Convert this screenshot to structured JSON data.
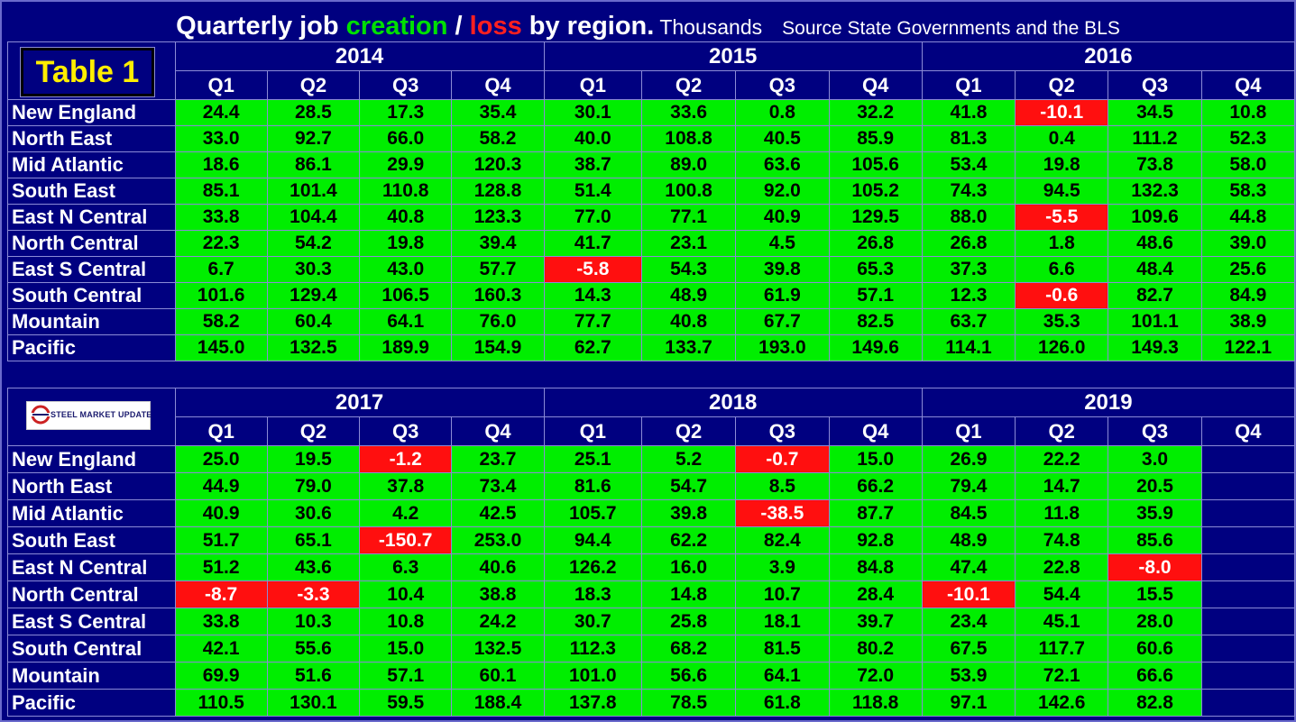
{
  "header": {
    "title_pre": "Quarterly job ",
    "creation": "creation",
    "sep": " / ",
    "loss": "loss",
    "title_post": " by region.",
    "units": "Thousands",
    "source": "Source State Governments and the BLS"
  },
  "badge": "Table 1",
  "logo_text": "STEEL MARKET UPDATE",
  "colors": {
    "background": "#000080",
    "positive": "#00ee00",
    "negative": "#ff0f0f",
    "title_creation": "#00e000",
    "title_loss": "#ff2020",
    "badge_text": "#ffee00"
  },
  "chart_data": {
    "type": "table",
    "title": "Quarterly job creation / loss by region. Thousands",
    "quarters": [
      "Q1",
      "Q2",
      "Q3",
      "Q4"
    ],
    "regions": [
      "New England",
      "North East",
      "Mid Atlantic",
      "South East",
      "East N Central",
      "North Central",
      "East S Central",
      "South Central",
      "Mountain",
      "Pacific"
    ],
    "panels": [
      {
        "years": [
          "2014",
          "2015",
          "2016"
        ],
        "rows": [
          [
            "24.4",
            "28.5",
            "17.3",
            "35.4",
            "30.1",
            "33.6",
            "0.8",
            "32.2",
            "41.8",
            "-10.1",
            "34.5",
            "10.8"
          ],
          [
            "33.0",
            "92.7",
            "66.0",
            "58.2",
            "40.0",
            "108.8",
            "40.5",
            "85.9",
            "81.3",
            "0.4",
            "111.2",
            "52.3"
          ],
          [
            "18.6",
            "86.1",
            "29.9",
            "120.3",
            "38.7",
            "89.0",
            "63.6",
            "105.6",
            "53.4",
            "19.8",
            "73.8",
            "58.0"
          ],
          [
            "85.1",
            "101.4",
            "110.8",
            "128.8",
            "51.4",
            "100.8",
            "92.0",
            "105.2",
            "74.3",
            "94.5",
            "132.3",
            "58.3"
          ],
          [
            "33.8",
            "104.4",
            "40.8",
            "123.3",
            "77.0",
            "77.1",
            "40.9",
            "129.5",
            "88.0",
            "-5.5",
            "109.6",
            "44.8"
          ],
          [
            "22.3",
            "54.2",
            "19.8",
            "39.4",
            "41.7",
            "23.1",
            "4.5",
            "26.8",
            "26.8",
            "1.8",
            "48.6",
            "39.0"
          ],
          [
            "6.7",
            "30.3",
            "43.0",
            "57.7",
            "-5.8",
            "54.3",
            "39.8",
            "65.3",
            "37.3",
            "6.6",
            "48.4",
            "25.6"
          ],
          [
            "101.6",
            "129.4",
            "106.5",
            "160.3",
            "14.3",
            "48.9",
            "61.9",
            "57.1",
            "12.3",
            "-0.6",
            "82.7",
            "84.9"
          ],
          [
            "58.2",
            "60.4",
            "64.1",
            "76.0",
            "77.7",
            "40.8",
            "67.7",
            "82.5",
            "63.7",
            "35.3",
            "101.1",
            "38.9"
          ],
          [
            "145.0",
            "132.5",
            "189.9",
            "154.9",
            "62.7",
            "133.7",
            "193.0",
            "149.6",
            "114.1",
            "126.0",
            "149.3",
            "122.1"
          ]
        ]
      },
      {
        "years": [
          "2017",
          "2018",
          "2019"
        ],
        "rows": [
          [
            "25.0",
            "19.5",
            "-1.2",
            "23.7",
            "25.1",
            "5.2",
            "-0.7",
            "15.0",
            "26.9",
            "22.2",
            "3.0",
            ""
          ],
          [
            "44.9",
            "79.0",
            "37.8",
            "73.4",
            "81.6",
            "54.7",
            "8.5",
            "66.2",
            "79.4",
            "14.7",
            "20.5",
            ""
          ],
          [
            "40.9",
            "30.6",
            "4.2",
            "42.5",
            "105.7",
            "39.8",
            "-38.5",
            "87.7",
            "84.5",
            "11.8",
            "35.9",
            ""
          ],
          [
            "51.7",
            "65.1",
            "-150.7",
            "253.0",
            "94.4",
            "62.2",
            "82.4",
            "92.8",
            "48.9",
            "74.8",
            "85.6",
            ""
          ],
          [
            "51.2",
            "43.6",
            "6.3",
            "40.6",
            "126.2",
            "16.0",
            "3.9",
            "84.8",
            "47.4",
            "22.8",
            "-8.0",
            ""
          ],
          [
            "-8.7",
            "-3.3",
            "10.4",
            "38.8",
            "18.3",
            "14.8",
            "10.7",
            "28.4",
            "-10.1",
            "54.4",
            "15.5",
            ""
          ],
          [
            "33.8",
            "10.3",
            "10.8",
            "24.2",
            "30.7",
            "25.8",
            "18.1",
            "39.7",
            "23.4",
            "45.1",
            "28.0",
            ""
          ],
          [
            "42.1",
            "55.6",
            "15.0",
            "132.5",
            "112.3",
            "68.2",
            "81.5",
            "80.2",
            "67.5",
            "117.7",
            "60.6",
            ""
          ],
          [
            "69.9",
            "51.6",
            "57.1",
            "60.1",
            "101.0",
            "56.6",
            "64.1",
            "72.0",
            "53.9",
            "72.1",
            "66.6",
            ""
          ],
          [
            "110.5",
            "130.1",
            "59.5",
            "188.4",
            "137.8",
            "78.5",
            "61.8",
            "118.8",
            "97.1",
            "142.6",
            "82.8",
            ""
          ]
        ]
      }
    ]
  }
}
